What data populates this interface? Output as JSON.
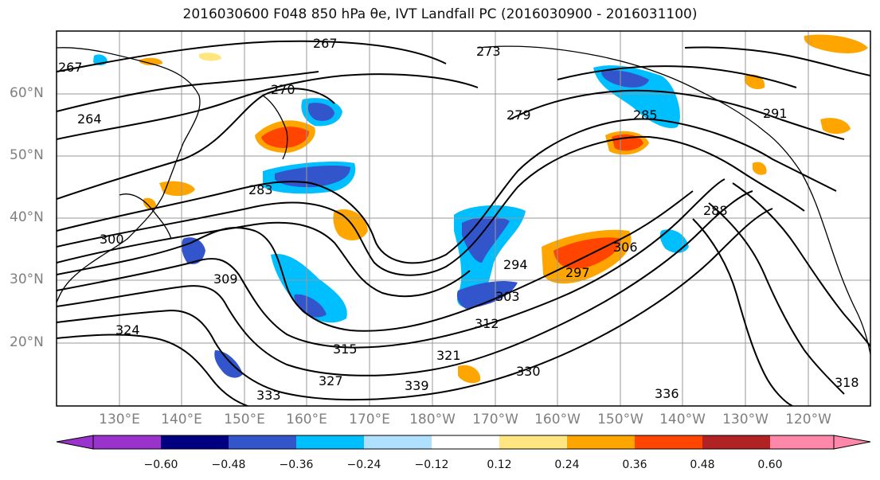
{
  "title": "2016030600 F048 850 hPa θe, IVT Landfall PC (2016030900 - 2016031100)",
  "map": {
    "lat_labels": [
      "60°N",
      "50°N",
      "40°N",
      "30°N",
      "20°N"
    ],
    "lon_labels": [
      "130°E",
      "140°E",
      "150°E",
      "160°E",
      "170°E",
      "180°W",
      "170°W",
      "160°W",
      "150°W",
      "140°W",
      "130°W",
      "120°W"
    ],
    "contour_labels": [
      "267",
      "264",
      "267",
      "270",
      "273",
      "279",
      "283",
      "285",
      "288",
      "291",
      "294",
      "297",
      "300",
      "303",
      "306",
      "309",
      "312",
      "315",
      "318",
      "321",
      "324",
      "327",
      "330",
      "333",
      "336",
      "339"
    ],
    "colors": {
      "c_neg_060": "#9933cc",
      "c_neg_048": "#000080",
      "c_neg_036": "#3355cc",
      "c_neg_024": "#00bfff",
      "c_neg_012": "#b0e0ff",
      "c_pos_012": "#ffe680",
      "c_pos_024": "#ffa500",
      "c_pos_036": "#ff4500",
      "c_pos_048": "#b22222",
      "c_pos_060": "#ff88aa"
    }
  },
  "colorbar": {
    "ticks": [
      "−0.60",
      "−0.48",
      "−0.36",
      "−0.24",
      "−0.12",
      "0.12",
      "0.24",
      "0.36",
      "0.48",
      "0.60"
    ]
  }
}
